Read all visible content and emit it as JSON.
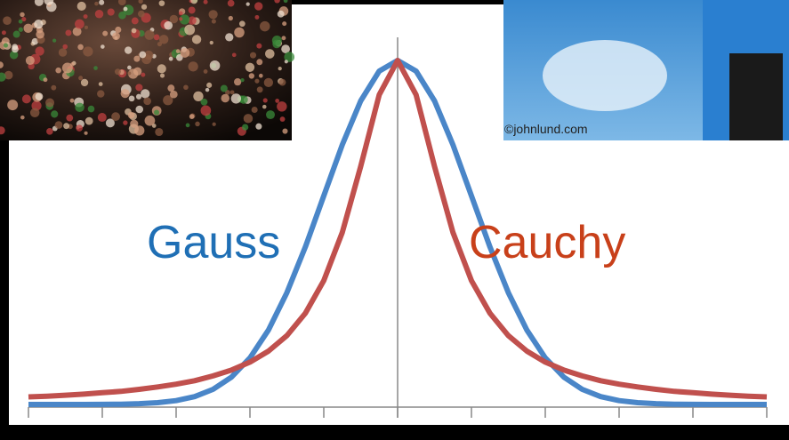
{
  "chart_data": {
    "type": "line",
    "x": [
      -5,
      -4.75,
      -4.5,
      -4.25,
      -4,
      -3.75,
      -3.5,
      -3.25,
      -3,
      -2.75,
      -2.5,
      -2.25,
      -2,
      -1.75,
      -1.5,
      -1.25,
      -1,
      -0.75,
      -0.5,
      -0.25,
      0,
      0.25,
      0.5,
      0.75,
      1,
      1.25,
      1.5,
      1.75,
      2,
      2.25,
      2.5,
      2.75,
      3,
      3.25,
      3.5,
      3.75,
      4,
      4.25,
      4.5,
      4.75,
      5
    ],
    "series": [
      {
        "name": "Gauss",
        "color": "#4a86c8",
        "label_color": "#1f6fb5",
        "values": [
          0,
          0,
          0,
          0.0001,
          0.0003,
          0.0009,
          0.0022,
          0.0051,
          0.0111,
          0.0228,
          0.0439,
          0.0796,
          0.1353,
          0.2163,
          0.3247,
          0.4578,
          0.6065,
          0.7548,
          0.8825,
          0.969,
          1,
          0.969,
          0.8825,
          0.7548,
          0.6065,
          0.4578,
          0.3247,
          0.2163,
          0.1353,
          0.0796,
          0.0439,
          0.0228,
          0.0111,
          0.0051,
          0.0022,
          0.0009,
          0.0003,
          0.0001,
          0,
          0,
          0
        ]
      },
      {
        "name": "Cauchy",
        "color": "#c0504d",
        "label_color": "#c8401a",
        "values": [
          0.022,
          0.024,
          0.027,
          0.03,
          0.034,
          0.038,
          0.044,
          0.051,
          0.059,
          0.069,
          0.083,
          0.1,
          0.123,
          0.155,
          0.2,
          0.265,
          0.36,
          0.5,
          0.692,
          0.9,
          1,
          0.9,
          0.692,
          0.5,
          0.36,
          0.265,
          0.2,
          0.155,
          0.123,
          0.1,
          0.083,
          0.069,
          0.059,
          0.051,
          0.044,
          0.038,
          0.034,
          0.03,
          0.027,
          0.024,
          0.022
        ]
      }
    ],
    "xlim": [
      -5,
      5
    ],
    "xticks": [
      -5,
      -4,
      -3,
      -2,
      -1,
      0,
      1,
      2,
      3,
      4,
      5
    ],
    "ylim": [
      0,
      1
    ]
  },
  "photo_credit": "©johnlund.com"
}
